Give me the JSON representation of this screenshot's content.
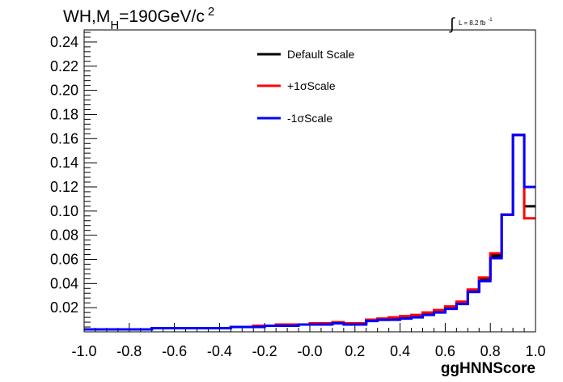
{
  "chart_data": {
    "type": "line",
    "title": {
      "main": "WH,M",
      "subscript": "H",
      "rest": "=190GeV/c",
      "superscript": "2"
    },
    "luminosity": {
      "integral_symbol": "∫",
      "label": "L = 8.2 fb",
      "superscript": "-1"
    },
    "xlabel": "ggHNNScore",
    "xlim": [
      -1.0,
      1.0
    ],
    "ylim": [
      0.0,
      0.25
    ],
    "x_tick_labels": [
      "-1.0",
      "-0.8",
      "-0.6",
      "-0.4",
      "-0.2",
      "-0.0",
      "0.2",
      "0.4",
      "0.6",
      "0.8",
      "1.0"
    ],
    "y_tick_labels": [
      "0.02",
      "0.04",
      "0.06",
      "0.08",
      "0.10",
      "0.12",
      "0.14",
      "0.16",
      "0.18",
      "0.20",
      "0.22",
      "0.24"
    ],
    "bin_edges": [
      -1.0,
      -0.95,
      -0.9,
      -0.85,
      -0.8,
      -0.75,
      -0.7,
      -0.65,
      -0.6,
      -0.55,
      -0.5,
      -0.45,
      -0.4,
      -0.35,
      -0.3,
      -0.25,
      -0.2,
      -0.15,
      -0.1,
      -0.05,
      0.0,
      0.05,
      0.1,
      0.15,
      0.2,
      0.25,
      0.3,
      0.35,
      0.4,
      0.45,
      0.5,
      0.55,
      0.6,
      0.65,
      0.7,
      0.75,
      0.8,
      0.85,
      0.9,
      0.95,
      1.0
    ],
    "legend_position": "top-center",
    "grid": false,
    "series": [
      {
        "name": "Default Scale",
        "color": "#000000",
        "values": [
          0.002,
          0.002,
          0.002,
          0.002,
          0.002,
          0.002,
          0.003,
          0.003,
          0.003,
          0.003,
          0.003,
          0.003,
          0.003,
          0.004,
          0.004,
          0.005,
          0.005,
          0.005,
          0.006,
          0.006,
          0.006,
          0.007,
          0.007,
          0.007,
          0.007,
          0.01,
          0.01,
          0.011,
          0.012,
          0.013,
          0.015,
          0.017,
          0.02,
          0.024,
          0.034,
          0.044,
          0.063,
          0.097,
          0.163,
          0.104
        ]
      },
      {
        "name": "+1σScale",
        "color": "#ff0000",
        "values": [
          0.002,
          0.002,
          0.002,
          0.002,
          0.002,
          0.002,
          0.003,
          0.003,
          0.003,
          0.003,
          0.003,
          0.003,
          0.003,
          0.004,
          0.004,
          0.005,
          0.005,
          0.006,
          0.006,
          0.006,
          0.007,
          0.007,
          0.008,
          0.007,
          0.007,
          0.01,
          0.011,
          0.012,
          0.013,
          0.014,
          0.016,
          0.018,
          0.021,
          0.025,
          0.035,
          0.045,
          0.065,
          0.097,
          0.163,
          0.094
        ]
      },
      {
        "name": "-1σScale",
        "color": "#0000ff",
        "values": [
          0.002,
          0.002,
          0.002,
          0.002,
          0.002,
          0.002,
          0.003,
          0.003,
          0.003,
          0.003,
          0.003,
          0.003,
          0.003,
          0.004,
          0.004,
          0.004,
          0.005,
          0.005,
          0.005,
          0.006,
          0.006,
          0.006,
          0.007,
          0.006,
          0.006,
          0.009,
          0.01,
          0.01,
          0.011,
          0.012,
          0.014,
          0.016,
          0.019,
          0.023,
          0.033,
          0.042,
          0.061,
          0.097,
          0.163,
          0.12
        ]
      }
    ]
  }
}
